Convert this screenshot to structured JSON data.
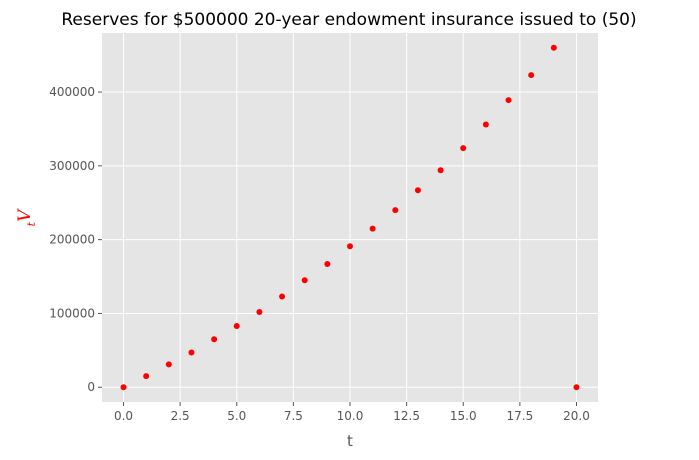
{
  "chart_data": {
    "type": "scatter",
    "title": "Reserves for $500000 20-year endowment insurance issued to (50)",
    "xlabel": "t",
    "ylabel": {
      "subscript": "t",
      "main": "V"
    },
    "xlim": [
      -0.95,
      20.95
    ],
    "ylim": [
      -20000,
      480000
    ],
    "x_ticks": [
      0,
      2.5,
      5,
      7.5,
      10,
      12.5,
      15,
      17.5,
      20
    ],
    "x_tick_labels": [
      "0.0",
      "2.5",
      "5.0",
      "7.5",
      "10.0",
      "12.5",
      "15.0",
      "17.5",
      "20.0"
    ],
    "y_ticks": [
      0,
      100000,
      200000,
      300000,
      400000
    ],
    "y_tick_labels": [
      "0",
      "100000",
      "200000",
      "300000",
      "400000"
    ],
    "grid": true,
    "background_color": "#e5e5e5",
    "marker_color": "#ff0000",
    "ylabel_color": "#ff0000",
    "series": [
      {
        "x": [
          0,
          1,
          2,
          3,
          4,
          5,
          6,
          7,
          8,
          9,
          10,
          11,
          12,
          13,
          14,
          15,
          16,
          17,
          18,
          19,
          20
        ],
        "y": [
          0,
          15000,
          31000,
          47000,
          65000,
          83000,
          102000,
          123000,
          145000,
          167000,
          191000,
          215000,
          240000,
          267000,
          294000,
          324000,
          356000,
          389000,
          423000,
          460000,
          0
        ]
      }
    ]
  }
}
